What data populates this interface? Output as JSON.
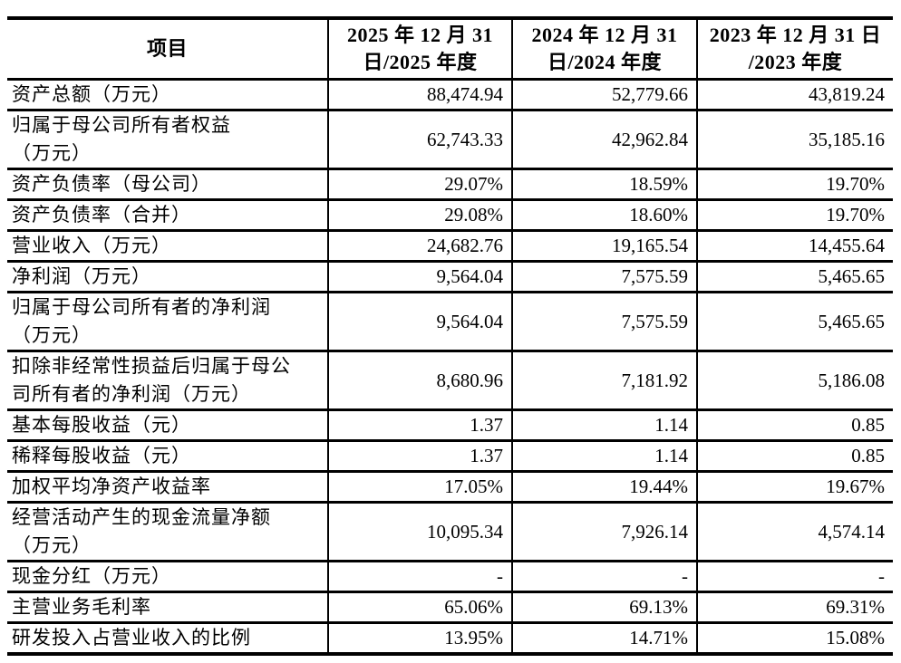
{
  "table": {
    "header": {
      "item": "项目",
      "periods": [
        {
          "line1": "2025 年 12 月 31",
          "line2": "日/2025 年度"
        },
        {
          "line1": "2024 年 12 月 31",
          "line2": "日/2024 年度"
        },
        {
          "line1": "2023 年 12 月 31 日",
          "line2": "/2023 年度"
        }
      ]
    },
    "rows": [
      {
        "label1": "资产总额（万元）",
        "label2": "",
        "values": [
          "88,474.94",
          "52,779.66",
          "43,819.24"
        ]
      },
      {
        "label1": "归属于母公司所有者权益",
        "label2": "（万元）",
        "values": [
          "62,743.33",
          "42,962.84",
          "35,185.16"
        ]
      },
      {
        "label1": "资产负债率（母公司）",
        "label2": "",
        "values": [
          "29.07%",
          "18.59%",
          "19.70%"
        ]
      },
      {
        "label1": "资产负债率（合并）",
        "label2": "",
        "values": [
          "29.08%",
          "18.60%",
          "19.70%"
        ]
      },
      {
        "label1": "营业收入（万元）",
        "label2": "",
        "values": [
          "24,682.76",
          "19,165.54",
          "14,455.64"
        ]
      },
      {
        "label1": "净利润（万元）",
        "label2": "",
        "values": [
          "9,564.04",
          "7,575.59",
          "5,465.65"
        ]
      },
      {
        "label1": "归属于母公司所有者的净利润",
        "label2": "（万元）",
        "values": [
          "9,564.04",
          "7,575.59",
          "5,465.65"
        ]
      },
      {
        "label1": "扣除非经常性损益后归属于母公",
        "label2": "司所有者的净利润（万元）",
        "values": [
          "8,680.96",
          "7,181.92",
          "5,186.08"
        ]
      },
      {
        "label1": "基本每股收益（元）",
        "label2": "",
        "values": [
          "1.37",
          "1.14",
          "0.85"
        ]
      },
      {
        "label1": "稀释每股收益（元）",
        "label2": "",
        "values": [
          "1.37",
          "1.14",
          "0.85"
        ]
      },
      {
        "label1": "加权平均净资产收益率",
        "label2": "",
        "values": [
          "17.05%",
          "19.44%",
          "19.67%"
        ]
      },
      {
        "label1": "经营活动产生的现金流量净额",
        "label2": "（万元）",
        "values": [
          "10,095.34",
          "7,926.14",
          "4,574.14"
        ]
      },
      {
        "label1": "现金分红（万元）",
        "label2": "",
        "values": [
          "-",
          "-",
          "-"
        ]
      },
      {
        "label1": "主营业务毛利率",
        "label2": "",
        "values": [
          "65.06%",
          "69.13%",
          "69.31%"
        ]
      },
      {
        "label1": "研发投入占营业收入的比例",
        "label2": "",
        "values": [
          "13.95%",
          "14.71%",
          "15.08%"
        ]
      }
    ]
  }
}
